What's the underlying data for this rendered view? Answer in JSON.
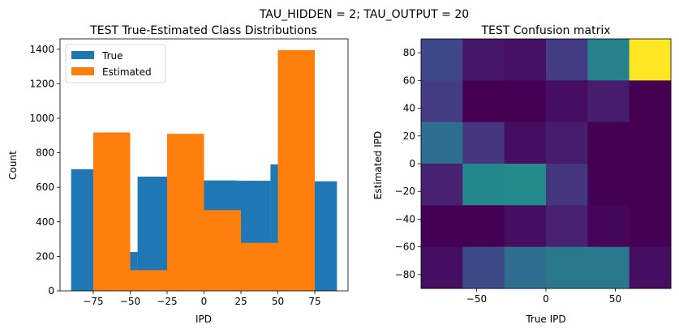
{
  "suptitle": "TAU_HIDDEN = 2; TAU_OUTPUT = 20",
  "chart_data": [
    {
      "type": "histogram",
      "title": "TEST True-Estimated Class Distributions",
      "xlabel": "IPD",
      "ylabel": "Count",
      "xlim": [
        -97.5,
        97.5
      ],
      "ylim": [
        0,
        1460
      ],
      "xticks": [
        -75,
        -50,
        -25,
        0,
        25,
        50,
        75
      ],
      "xtick_labels": [
        "−75",
        "−50",
        "−25",
        "0",
        "25",
        "50",
        "75"
      ],
      "yticks": [
        0,
        200,
        400,
        600,
        800,
        1000,
        1200,
        1400
      ],
      "legend": {
        "position": "upper-left",
        "entries": [
          "True",
          "Estimated"
        ]
      },
      "series": [
        {
          "name": "True",
          "color": "#1f77b4",
          "edges": [
            -90,
            -67.5,
            -45,
            -22.5,
            0,
            22.5,
            45,
            67.5,
            90
          ],
          "values": [
            705,
            225,
            662,
            710,
            640,
            638,
            733,
            635
          ]
        },
        {
          "name": "Estimated",
          "color": "#ff7f0e",
          "edges": [
            -75,
            -50,
            -25,
            0,
            25,
            50,
            75
          ],
          "values": [
            918,
            120,
            910,
            468,
            278,
            1395
          ]
        }
      ]
    },
    {
      "type": "heatmap",
      "title": "TEST Confusion matrix",
      "xlabel": "True IPD",
      "ylabel": "Estimated IPD",
      "xlim": [
        -90,
        90
      ],
      "ylim": [
        -90,
        90
      ],
      "xticks": [
        -50,
        0,
        50
      ],
      "xtick_labels": [
        "−50",
        "0",
        "50"
      ],
      "yticks": [
        80,
        60,
        40,
        20,
        0,
        -20,
        -40,
        -60,
        -80
      ],
      "ytick_labels": [
        "80",
        "60",
        "40",
        "20",
        "0",
        "−20",
        "−40",
        "−60",
        "−80"
      ],
      "colormap": "viridis",
      "value_range": [
        0,
        1
      ],
      "rows_top_to_bottom": [
        [
          0.27,
          0.08,
          0.06,
          0.22,
          0.55,
          1.0
        ],
        [
          0.22,
          0.0,
          0.0,
          0.05,
          0.1,
          0.0
        ],
        [
          0.45,
          0.2,
          0.05,
          0.1,
          0.0,
          0.0
        ],
        [
          0.12,
          0.58,
          0.6,
          0.2,
          0.0,
          0.0
        ],
        [
          0.0,
          0.0,
          0.05,
          0.12,
          0.02,
          0.0
        ],
        [
          0.05,
          0.28,
          0.45,
          0.5,
          0.5,
          0.05
        ]
      ]
    }
  ]
}
